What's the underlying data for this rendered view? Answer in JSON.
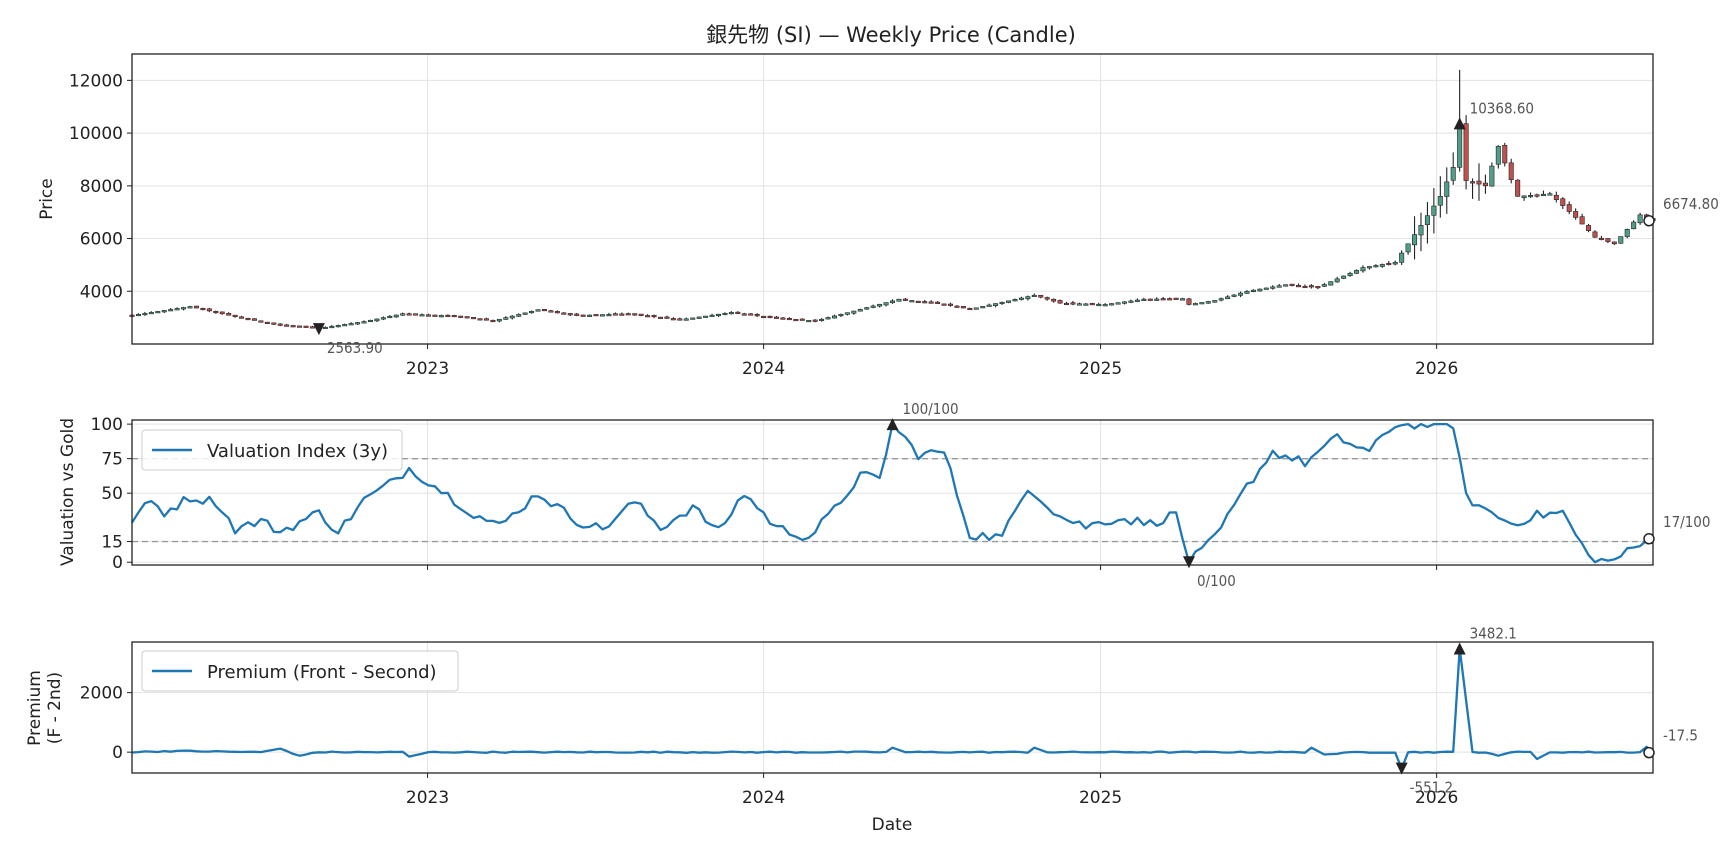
{
  "chart_data": [
    {
      "type": "candlestick",
      "title": "銀先物 (SI) — Weekly Price (Candle)",
      "ylabel": "Price",
      "ylim": [
        2000,
        13000
      ],
      "y_ticks": [
        "4000",
        "6000",
        "8000",
        "10000",
        "12000"
      ],
      "x_ticks": [
        "2023",
        "2024",
        "2025",
        "2026"
      ],
      "xlim": [
        "2022-02-14",
        "2026-08-24"
      ],
      "colors": {
        "up": "#4e9e8a",
        "down": "#c0504d",
        "wick": "#222222"
      },
      "anchors": [
        [
          "2022-02-14",
          3090
        ],
        [
          "2022-04-18",
          3420
        ],
        [
          "2022-06-13",
          2980
        ],
        [
          "2022-07-25",
          2720
        ],
        [
          "2022-09-05",
          2600
        ],
        [
          "2022-10-24",
          2850
        ],
        [
          "2022-12-05",
          3150
        ],
        [
          "2023-02-06",
          3050
        ],
        [
          "2023-03-13",
          2880
        ],
        [
          "2023-05-01",
          3300
        ],
        [
          "2023-06-12",
          3080
        ],
        [
          "2023-08-07",
          3150
        ],
        [
          "2023-10-02",
          2920
        ],
        [
          "2023-11-27",
          3200
        ],
        [
          "2024-01-08",
          3000
        ],
        [
          "2024-02-26",
          2880
        ],
        [
          "2024-04-08",
          3250
        ],
        [
          "2024-05-27",
          3700
        ],
        [
          "2024-07-08",
          3550
        ],
        [
          "2024-08-12",
          3320
        ],
        [
          "2024-10-21",
          3850
        ],
        [
          "2024-11-18",
          3550
        ],
        [
          "2025-01-06",
          3500
        ],
        [
          "2025-02-17",
          3700
        ],
        [
          "2025-03-31",
          3720
        ],
        [
          "2025-04-07",
          3500
        ],
        [
          "2025-05-05",
          3650
        ],
        [
          "2025-06-09",
          4000
        ],
        [
          "2025-07-21",
          4250
        ],
        [
          "2025-08-25",
          4150
        ],
        [
          "2025-10-13",
          4900
        ],
        [
          "2025-11-17",
          5100
        ],
        [
          "2025-12-15",
          6500
        ],
        [
          "2026-01-05",
          7600
        ],
        [
          "2026-01-19",
          8700
        ],
        [
          "2026-01-26",
          10368.6
        ],
        [
          "2026-02-02",
          8200
        ],
        [
          "2026-02-23",
          8000
        ],
        [
          "2026-03-09",
          9500
        ],
        [
          "2026-03-30",
          7600
        ],
        [
          "2026-05-04",
          7700
        ],
        [
          "2026-06-01",
          6800
        ],
        [
          "2026-06-22",
          6050
        ],
        [
          "2026-07-13",
          5800
        ],
        [
          "2026-08-10",
          6900
        ],
        [
          "2026-08-24",
          6674.8
        ]
      ],
      "annotations": [
        {
          "label": "10368.60",
          "date": "2026-01-26",
          "value": 10368.6,
          "marker": "up"
        },
        {
          "label": "2563.90",
          "date": "2022-09-05",
          "value": 2563.9,
          "marker": "down"
        },
        {
          "label": "6674.80",
          "date": "2026-08-24",
          "value": 6674.8,
          "marker": "last"
        }
      ]
    },
    {
      "type": "line",
      "ylabel": "Valuation vs Gold",
      "ylim": [
        -2,
        103
      ],
      "y_ticks": [
        "0",
        "15",
        "50",
        "75",
        "100"
      ],
      "hlines": [
        75,
        15
      ],
      "legend": "Valuation Index (3y)",
      "legend_position": "upper left",
      "color": "#1f77b4",
      "anchors": [
        [
          "2022-02-14",
          31
        ],
        [
          "2022-03-07",
          44
        ],
        [
          "2022-03-21",
          36
        ],
        [
          "2022-04-18",
          47
        ],
        [
          "2022-05-16",
          44
        ],
        [
          "2022-06-06",
          24
        ],
        [
          "2022-07-04",
          30
        ],
        [
          "2022-07-25",
          22
        ],
        [
          "2022-09-05",
          36
        ],
        [
          "2022-09-26",
          22
        ],
        [
          "2022-10-24",
          45
        ],
        [
          "2022-11-21",
          57
        ],
        [
          "2022-12-12",
          68
        ],
        [
          "2023-01-16",
          52
        ],
        [
          "2023-02-20",
          35
        ],
        [
          "2023-03-20",
          26
        ],
        [
          "2023-05-01",
          50
        ],
        [
          "2023-06-12",
          30
        ],
        [
          "2023-07-10",
          24
        ],
        [
          "2023-08-14",
          44
        ],
        [
          "2023-09-11",
          25
        ],
        [
          "2023-10-16",
          40
        ],
        [
          "2023-11-13",
          22
        ],
        [
          "2023-12-11",
          50
        ],
        [
          "2024-01-15",
          25
        ],
        [
          "2024-02-19",
          18
        ],
        [
          "2024-03-18",
          38
        ],
        [
          "2024-04-15",
          63
        ],
        [
          "2024-05-06",
          60
        ],
        [
          "2024-05-20",
          100
        ],
        [
          "2024-06-17",
          78
        ],
        [
          "2024-07-15",
          80
        ],
        [
          "2024-08-12",
          20
        ],
        [
          "2024-09-16",
          18
        ],
        [
          "2024-10-14",
          55
        ],
        [
          "2024-11-18",
          33
        ],
        [
          "2024-12-16",
          26
        ],
        [
          "2025-01-20",
          32
        ],
        [
          "2025-02-24",
          28
        ],
        [
          "2025-03-24",
          35
        ],
        [
          "2025-04-07",
          0
        ],
        [
          "2025-05-05",
          17
        ],
        [
          "2025-06-09",
          55
        ],
        [
          "2025-07-07",
          80
        ],
        [
          "2025-08-11",
          72
        ],
        [
          "2025-09-15",
          90
        ],
        [
          "2025-10-20",
          80
        ],
        [
          "2025-11-17",
          100
        ],
        [
          "2025-12-15",
          100
        ],
        [
          "2026-01-19",
          100
        ],
        [
          "2026-02-02",
          47
        ],
        [
          "2026-02-23",
          38
        ],
        [
          "2026-03-23",
          28
        ],
        [
          "2026-04-20",
          34
        ],
        [
          "2026-05-18",
          36
        ],
        [
          "2026-06-15",
          4
        ],
        [
          "2026-07-06",
          0
        ],
        [
          "2026-08-24",
          17
        ]
      ],
      "annotations": [
        {
          "label": "100/100",
          "date": "2024-05-20",
          "value": 100,
          "marker": "up"
        },
        {
          "label": "0/100",
          "date": "2025-04-07",
          "value": 0,
          "marker": "down"
        },
        {
          "label": "17/100",
          "date": "2026-08-24",
          "value": 17,
          "marker": "last"
        }
      ]
    },
    {
      "type": "line",
      "ylabel": [
        "Premium",
        "(F - 2nd)"
      ],
      "xlabel": "Date",
      "ylim": [
        -700,
        3700
      ],
      "y_ticks": [
        "0",
        "2000"
      ],
      "x_ticks": [
        "2023",
        "2024",
        "2025",
        "2026"
      ],
      "legend": "Premium (Front - Second)",
      "legend_position": "upper left",
      "color": "#1f77b4",
      "anchors": [
        [
          "2022-02-14",
          0
        ],
        [
          "2022-03-07",
          20
        ],
        [
          "2022-04-04",
          40
        ],
        [
          "2022-07-04",
          0
        ],
        [
          "2022-07-25",
          120
        ],
        [
          "2022-08-15",
          -120
        ],
        [
          "2022-09-05",
          0
        ],
        [
          "2022-12-05",
          0
        ],
        [
          "2022-12-12",
          -150
        ],
        [
          "2023-01-02",
          0
        ],
        [
          "2024-05-13",
          0
        ],
        [
          "2024-05-20",
          150
        ],
        [
          "2024-06-03",
          0
        ],
        [
          "2024-10-14",
          0
        ],
        [
          "2024-10-21",
          150
        ],
        [
          "2024-11-04",
          0
        ],
        [
          "2025-08-11",
          0
        ],
        [
          "2025-08-18",
          150
        ],
        [
          "2025-09-01",
          -80
        ],
        [
          "2025-10-06",
          0
        ],
        [
          "2025-11-17",
          0
        ],
        [
          "2025-11-24",
          -551.2
        ],
        [
          "2025-12-01",
          0
        ],
        [
          "2026-01-19",
          0
        ],
        [
          "2026-01-26",
          3482.1
        ],
        [
          "2026-02-09",
          0
        ],
        [
          "2026-02-23",
          0
        ],
        [
          "2026-03-09",
          -120
        ],
        [
          "2026-03-23",
          0
        ],
        [
          "2026-04-13",
          0
        ],
        [
          "2026-04-20",
          -230
        ],
        [
          "2026-05-04",
          0
        ],
        [
          "2026-08-10",
          0
        ],
        [
          "2026-08-17",
          180
        ],
        [
          "2026-08-24",
          -17.5
        ]
      ],
      "annotations": [
        {
          "label": "3482.1",
          "date": "2026-01-26",
          "value": 3482.1,
          "marker": "up"
        },
        {
          "label": "-551.2",
          "date": "2025-11-24",
          "value": -551.2,
          "marker": "down"
        },
        {
          "label": "-17.5",
          "date": "2026-08-24",
          "value": -17.5,
          "marker": "last"
        }
      ]
    }
  ]
}
